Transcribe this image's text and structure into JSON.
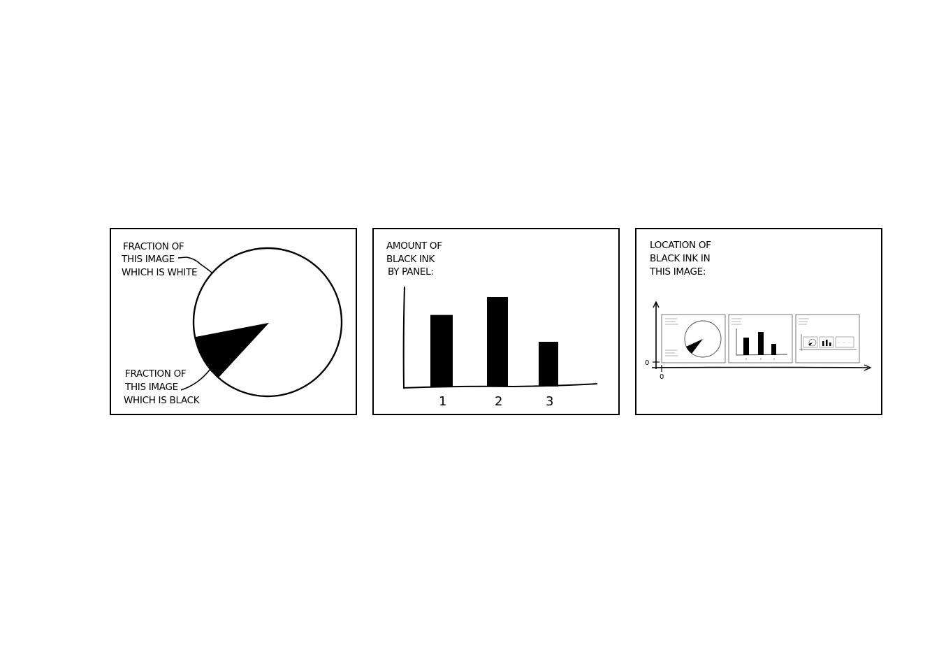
{
  "chart_data": [
    {
      "type": "pie",
      "title": "",
      "labels": [
        "FRACTION OF THIS IMAGE WHICH IS WHITE",
        "FRACTION OF THIS IMAGE WHICH IS BLACK"
      ],
      "label_lines": [
        [
          "FRACTION OF",
          "THIS IMAGE",
          "WHICH IS WHITE"
        ],
        [
          "FRACTION OF",
          "THIS IMAGE",
          "WHICH IS BLACK"
        ]
      ],
      "values": [
        0.9,
        0.1
      ],
      "colors": [
        "#ffffff",
        "#000000"
      ]
    },
    {
      "type": "bar",
      "title": "AMOUNT OF BLACK INK BY PANEL:",
      "title_lines": [
        "AMOUNT OF",
        "BLACK INK",
        "BY PANEL:"
      ],
      "categories": [
        "1",
        "2",
        "3"
      ],
      "values": [
        0.8,
        1.0,
        0.5
      ],
      "color": "#000000"
    },
    {
      "type": "other",
      "title": "LOCATION OF BLACK INK IN THIS IMAGE:",
      "title_lines": [
        "LOCATION OF",
        "BLACK INK IN",
        "THIS IMAGE:"
      ],
      "x_origin_label": "0",
      "y_origin_label": "0",
      "description_visible": "miniature copy of the three panels"
    }
  ]
}
